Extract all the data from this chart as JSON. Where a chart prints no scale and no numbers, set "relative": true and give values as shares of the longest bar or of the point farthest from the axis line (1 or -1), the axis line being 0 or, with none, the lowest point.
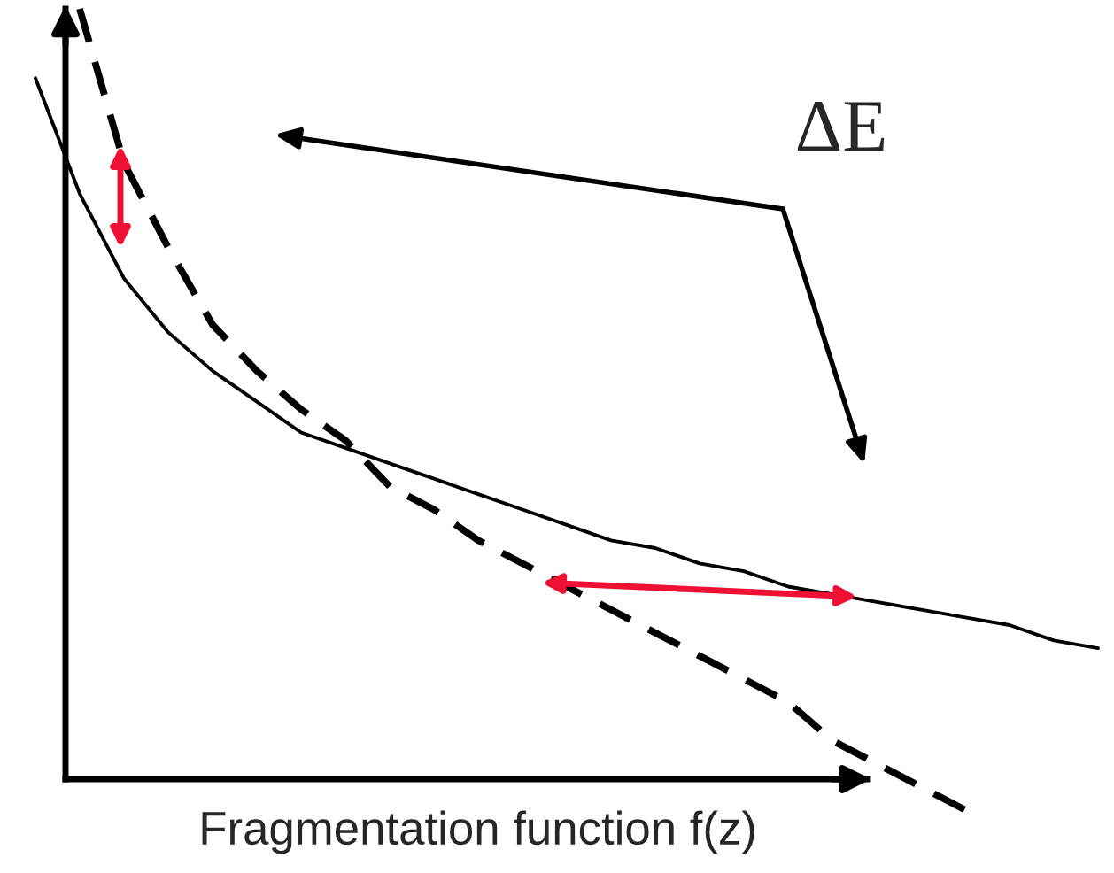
{
  "chart_data": {
    "type": "line",
    "relative": true,
    "xlabel": "Fragmentation function f(z)",
    "annotations": [
      "ΔE"
    ],
    "categories": [
      null,
      null,
      null,
      null,
      null,
      null,
      null,
      null,
      null,
      null,
      null,
      null,
      null,
      null,
      null,
      null,
      null,
      null,
      null,
      null,
      null,
      null,
      null,
      null,
      null
    ],
    "series": [
      {
        "color": "#000000",
        "line_style": "solid",
        "values": [
          0.91,
          0.76,
          0.65,
          0.58,
          0.53,
          0.49,
          0.45,
          0.43,
          0.41,
          0.39,
          0.37,
          0.35,
          0.33,
          0.31,
          0.3,
          0.28,
          0.27,
          0.25,
          0.24,
          0.23,
          0.22,
          0.21,
          0.2,
          0.18,
          0.17
        ]
      },
      {
        "color": "#000000",
        "line_style": "dashed",
        "values": [
          null,
          1.0,
          0.8,
          0.69,
          0.59,
          0.53,
          0.48,
          0.44,
          0.38,
          0.35,
          0.31,
          0.28,
          0.25,
          0.22,
          0.19,
          0.16,
          0.13,
          0.1,
          0.05,
          0.02,
          -0.01,
          -0.04,
          null,
          null,
          null
        ]
      }
    ],
    "grid": false,
    "legend": false
  }
}
